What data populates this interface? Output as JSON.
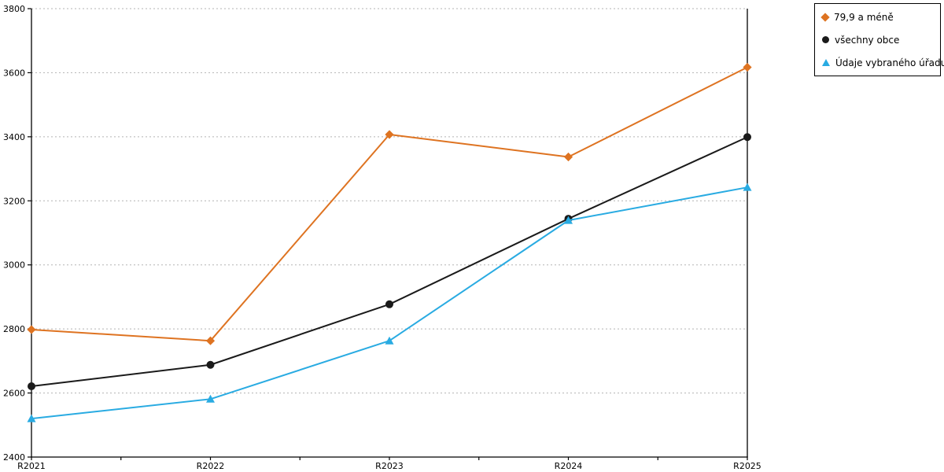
{
  "chart_data": {
    "type": "line",
    "categories": [
      "R2021",
      "R2022",
      "R2023",
      "R2024",
      "R2025"
    ],
    "series": [
      {
        "name": "79,9 a méně",
        "color": "#de7321",
        "marker": "diamond",
        "values": [
          2798,
          2763,
          3407,
          3337,
          3617
        ]
      },
      {
        "name": "všechny obce",
        "color": "#1a1a1a",
        "marker": "circle",
        "values": [
          2621,
          2688,
          2877,
          3144,
          3399
        ]
      },
      {
        "name": "Údaje vybraného úřadu",
        "color": "#29abe2",
        "marker": "triangle",
        "values": [
          2520,
          2581,
          2763,
          3139,
          3242
        ]
      }
    ],
    "title": "",
    "xlabel": "",
    "ylabel": "",
    "ylim": [
      2400,
      3800
    ],
    "yticks": [
      2400,
      2600,
      2800,
      3000,
      3200,
      3400,
      3600,
      3800
    ],
    "grid": "horizontal-dotted",
    "grid_color": "#b3b3b3",
    "axis_color": "#000000",
    "legend_position": "top-right",
    "minor_x_ticks_between_categories": true
  }
}
